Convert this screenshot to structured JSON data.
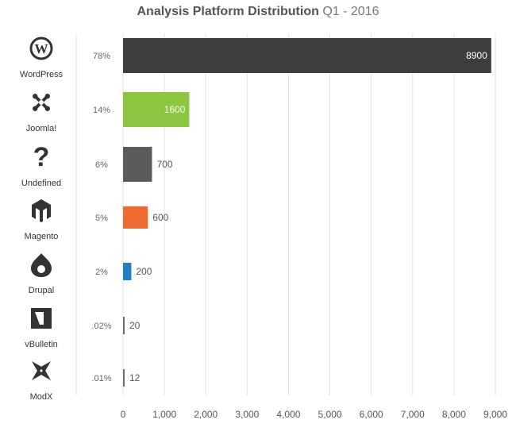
{
  "title": {
    "main": "Analysis Platform Distribution",
    "sub": "Q1 - 2016"
  },
  "chart_data": {
    "type": "bar",
    "orientation": "horizontal",
    "title": "Analysis Platform Distribution Q1 - 2016",
    "categories": [
      "WordPress",
      "Joomla!",
      "Undefined",
      "Magento",
      "Drupal",
      "vBulletin",
      "ModX"
    ],
    "values": [
      8900,
      1600,
      700,
      600,
      200,
      20,
      12
    ],
    "percent_labels": [
      "78%",
      "14%",
      "6%",
      "5%",
      "2%",
      ".02%",
      ".01%"
    ],
    "value_labels": [
      "8900",
      "1600",
      "700",
      "600",
      "200",
      "20",
      "12"
    ],
    "colors": [
      "#3d3d3d",
      "#8cc63f",
      "#5b5b5b",
      "#ef6a30",
      "#1f7ec2",
      "#6f6f6f",
      "#6f6f6f"
    ],
    "icons": [
      "wordpress-logo",
      "joomla-logo",
      "question-mark",
      "magento-logo",
      "drupal-logo",
      "vbulletin-logo",
      "modx-logo"
    ],
    "xlim": [
      0,
      9000
    ],
    "xticks": [
      "0",
      "1,000",
      "2,000",
      "3,000",
      "4,000",
      "5,000",
      "6,000",
      "7,000",
      "8,000",
      "9,000"
    ],
    "grid": true,
    "legend": "none"
  }
}
